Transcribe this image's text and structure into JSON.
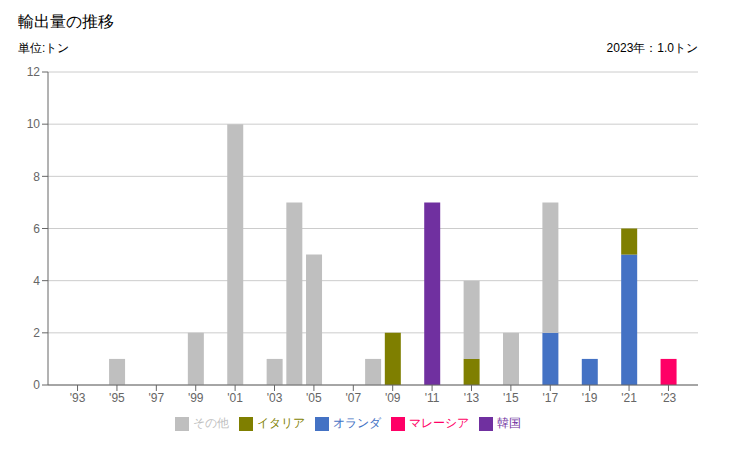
{
  "chart_data": {
    "type": "bar",
    "title": "輸出量の推移",
    "ylabel": "単位:トン",
    "annotation": "2023年：1.0トン",
    "stacked": true,
    "grid": true,
    "legend": "bottom",
    "x": [
      1993,
      1995,
      1997,
      1999,
      2001,
      2003,
      2004,
      2005,
      2007,
      2008,
      2009,
      2011,
      2013,
      2015,
      2017,
      2019,
      2021,
      2023
    ],
    "xlim": [
      1991.5,
      2024.5
    ],
    "xticks": [
      {
        "value": 1993,
        "label": "'93"
      },
      {
        "value": 1995,
        "label": "'95"
      },
      {
        "value": 1997,
        "label": "'97"
      },
      {
        "value": 1999,
        "label": "'99"
      },
      {
        "value": 2001,
        "label": "'01"
      },
      {
        "value": 2003,
        "label": "'03"
      },
      {
        "value": 2005,
        "label": "'05"
      },
      {
        "value": 2007,
        "label": "'07"
      },
      {
        "value": 2009,
        "label": "'09"
      },
      {
        "value": 2011,
        "label": "'11"
      },
      {
        "value": 2013,
        "label": "'13"
      },
      {
        "value": 2015,
        "label": "'15"
      },
      {
        "value": 2017,
        "label": "'17"
      },
      {
        "value": 2019,
        "label": "'19"
      },
      {
        "value": 2021,
        "label": "'21"
      },
      {
        "value": 2023,
        "label": "'23"
      }
    ],
    "ylim": [
      0,
      12
    ],
    "yticks": [
      0,
      2,
      4,
      6,
      8,
      10,
      12
    ],
    "series": [
      {
        "name": "オランダ",
        "color": "#4472c4",
        "values": [
          0,
          0,
          0,
          0,
          0,
          0,
          0,
          0,
          0,
          0,
          0,
          0,
          0,
          0,
          2,
          1,
          5,
          0
        ]
      },
      {
        "name": "マレーシア",
        "color": "#ff0066",
        "values": [
          0,
          0,
          0,
          0,
          0,
          0,
          0,
          0,
          0,
          0,
          0,
          0,
          0,
          0,
          0,
          0,
          0,
          1
        ]
      },
      {
        "name": "イタリア",
        "color": "#7f7f00",
        "values": [
          0,
          0,
          0,
          0,
          0,
          0,
          0,
          0,
          0,
          0,
          2,
          0,
          1,
          0,
          0,
          0,
          1,
          0
        ]
      },
      {
        "name": "韓国",
        "color": "#7030a0",
        "values": [
          0,
          0,
          0,
          0,
          0,
          0,
          0,
          0,
          0,
          0,
          0,
          7,
          0,
          0,
          0,
          0,
          0,
          0
        ]
      },
      {
        "name": "その他",
        "color": "#bfbfbf",
        "values": [
          0,
          1,
          0,
          2,
          10,
          1,
          7,
          5,
          0,
          1,
          0,
          0,
          3,
          2,
          5,
          0,
          0,
          0
        ]
      }
    ]
  }
}
